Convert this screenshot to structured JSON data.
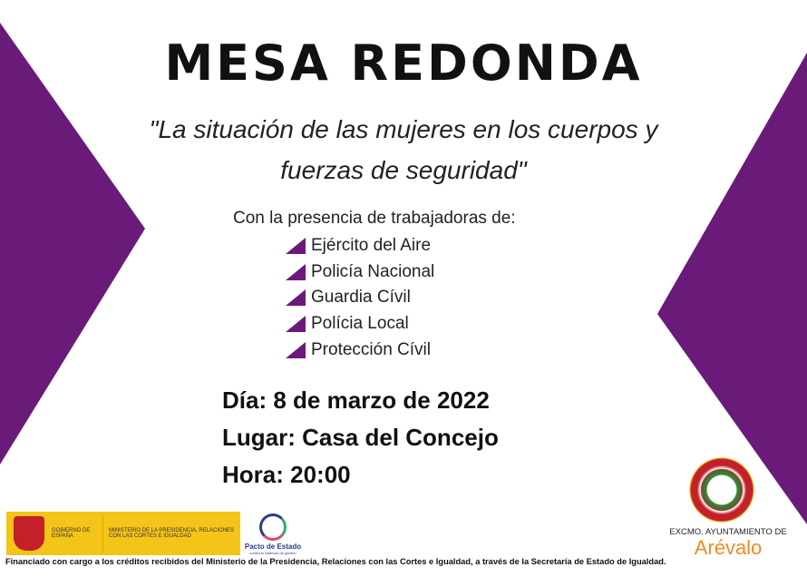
{
  "title": "MESA REDONDA",
  "subtitle_line1": "\"La situación de las mujeres en los cuerpos y",
  "subtitle_line2": "fuerzas de seguridad\"",
  "intro": "Con la presencia de trabajadoras de:",
  "participants": [
    "Ejército del Aire",
    "Policía Nacional",
    "Guardia Cívil",
    "Polícia Local",
    "Protección Cívil"
  ],
  "details": {
    "day": "Día: 8 de marzo de 2022",
    "place": "Lugar: Casa del Concejo",
    "time": "Hora: 20:00"
  },
  "logos": {
    "gobierno": "GOBIERNO DE ESPAÑA",
    "ministerio": "MINISTERIO DE LA PRESIDENCIA, RELACIONES CON LAS CORTES E IGUALDAD",
    "pacto": "Pacto de Estado",
    "pacto_sub": "contra la violencia de género",
    "ayuntamiento": "EXCMO. AYUNTAMIENTO DE",
    "arevalo": "Arévalo"
  },
  "footer": "Financiado con cargo a los créditos recibidos del Ministerio de la Presidencia, Relaciones con las Cortes e Igualdad, a través de la Secretaría de Estado de Igualdad.",
  "colors": {
    "accent": "#6a1b7a",
    "orange": "#f08a1e",
    "yellow": "#f4c418"
  }
}
